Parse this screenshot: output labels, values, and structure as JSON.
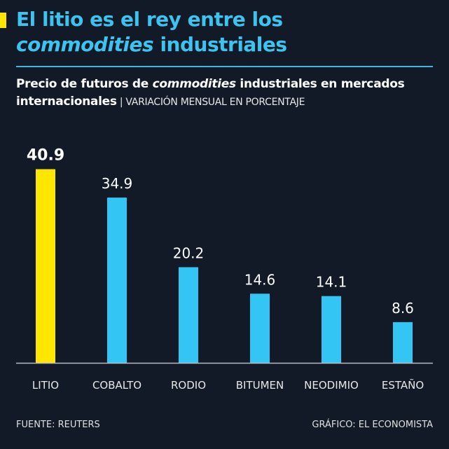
{
  "header": {
    "title_line1": "El litio es el rey entre los",
    "title_italic": "commodities",
    "title_rest": " industriales",
    "subtitle_part1": "Precio de futuros de ",
    "subtitle_italic": "commodities",
    "subtitle_part2": " industriales en mercados internacionales",
    "subtitle_separator": " | ",
    "subtitle_unit": "VARIACIÓN MENSUAL EN PORCENTAJE"
  },
  "footer": {
    "source": "FUENTE: REUTERS",
    "credit": "GRÁFICO: EL ECONOMISTA"
  },
  "colors": {
    "background": "#111a26",
    "highlight": "#ffe600",
    "bar": "#33c6f4",
    "title": "#3cc3ef"
  },
  "chart_data": {
    "type": "bar",
    "categories": [
      "LITIO",
      "COBALTO",
      "RODIO",
      "BITUMEN",
      "NEODIMIO",
      "ESTAÑO"
    ],
    "values": [
      40.9,
      34.9,
      20.2,
      14.6,
      14.1,
      8.6
    ],
    "value_labels": [
      "40.9",
      "34.9",
      "20.2",
      "14.6",
      "14.1",
      "8.6"
    ],
    "highlighted": "LITIO",
    "ylim": [
      0,
      45
    ],
    "grid": false
  }
}
